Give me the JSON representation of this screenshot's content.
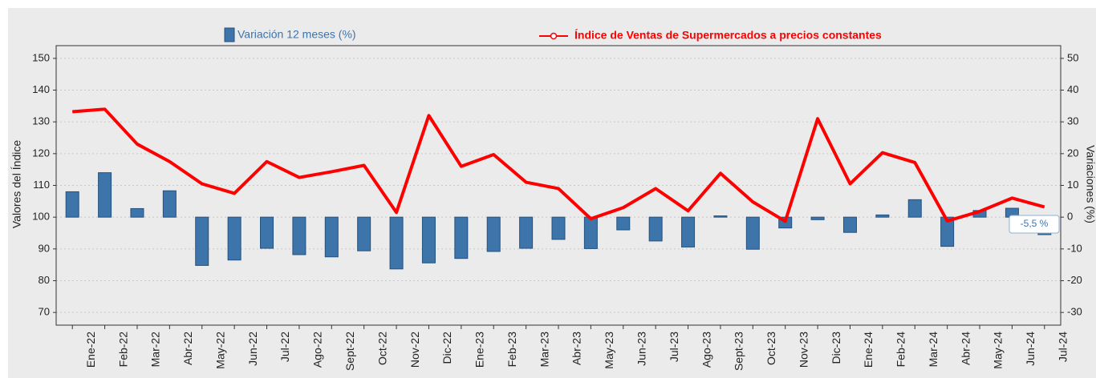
{
  "chart_data": {
    "type": "combo",
    "ylabel": "Valores del Índice",
    "y2label": "Variaciones (%)",
    "categories": [
      "Ene-22",
      "Feb-22",
      "Mar-22",
      "Abr-22",
      "May-22",
      "Jun-22",
      "Jul-22",
      "Ago-22",
      "Sept-22",
      "Oct-22",
      "Nov-22",
      "Dic-22",
      "Ene-23",
      "Feb-23",
      "Mar-23",
      "Abr-23",
      "May-23",
      "Jun-23",
      "Jul-23",
      "Ago-23",
      "Sept-23",
      "Oct-23",
      "Nov-23",
      "Dic-23",
      "Ene-24",
      "Feb-24",
      "Mar-24",
      "Abr-24",
      "May-24",
      "Jun-24",
      "Jul-24"
    ],
    "series": [
      {
        "name": "Variación 12 meses (%)",
        "type": "bar",
        "axis": "y2",
        "color": "#3d74aa",
        "values": [
          8,
          14,
          2.7,
          8.3,
          -15.2,
          -13.5,
          -9.8,
          -11.8,
          -12.5,
          -10.6,
          -16.3,
          -14.4,
          -13,
          -10.8,
          -9.8,
          -7,
          -9.9,
          -4,
          -7.5,
          -9.4,
          0.4,
          -10.1,
          -3.4,
          -0.8,
          -4.8,
          0.7,
          5.5,
          -9.2,
          2.1,
          2.8,
          -5.5
        ]
      },
      {
        "name": "Índice de Ventas de Supermercados a precios constantes",
        "type": "line",
        "axis": "y",
        "color": "#ff0000",
        "values": [
          133.2,
          134,
          123,
          117.5,
          110.5,
          107.5,
          117.5,
          112.5,
          114.3,
          116.3,
          101.5,
          132,
          116,
          119.7,
          111,
          109,
          99.5,
          103,
          109,
          102,
          113.8,
          104.8,
          98.7,
          131,
          110.5,
          120.3,
          117.2,
          98.8,
          101.8,
          106,
          103.2
        ]
      }
    ],
    "tooltip": "-5,5 %",
    "ylim": [
      66,
      154
    ],
    "yticks": [
      70,
      80,
      90,
      100,
      110,
      120,
      130,
      140,
      150
    ],
    "y2lim": [
      -34,
      54
    ],
    "y2ticks": [
      -30,
      -20,
      -10,
      0,
      10,
      20,
      30,
      40,
      50
    ],
    "grid": true
  }
}
